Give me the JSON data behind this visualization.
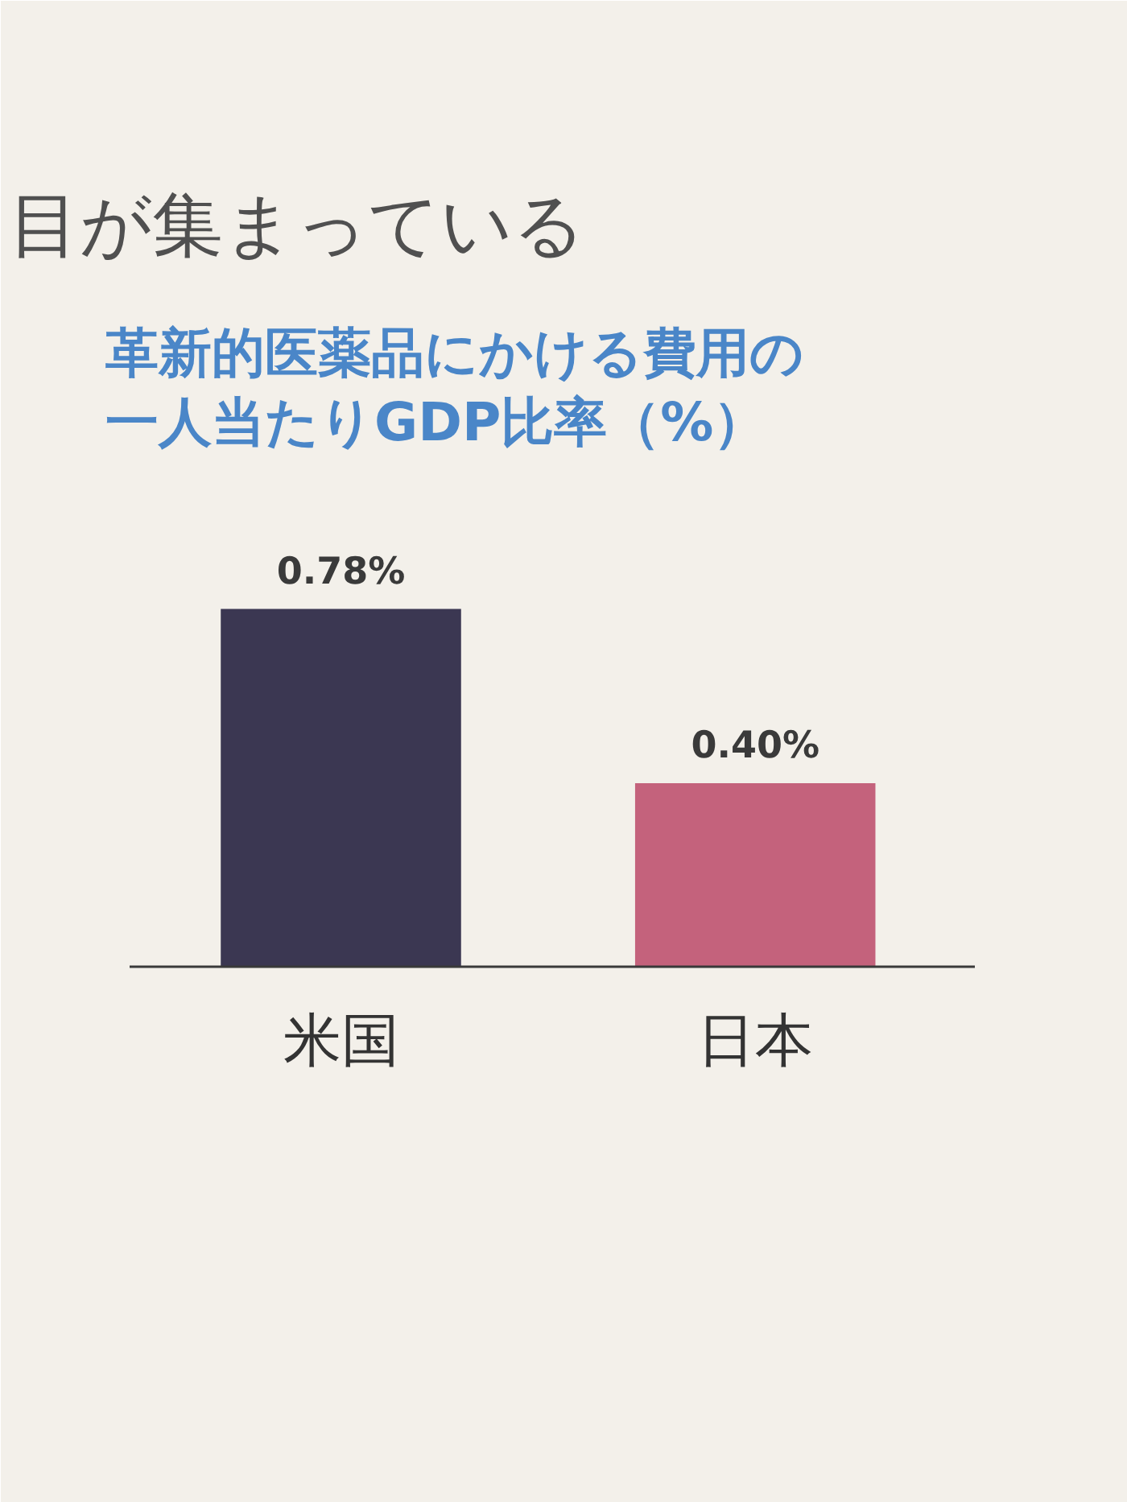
{
  "chart_data": {
    "type": "bar",
    "title": "革新的医薬品にかける費用の一人当たりGDP比率（%）",
    "annotations": [
      "目が集まっている"
    ],
    "categories": [
      "米国",
      "日本"
    ],
    "values": [
      0.78,
      0.4
    ],
    "colors": [
      "#3b3752",
      "#c4627c"
    ],
    "value_labels": [
      "0.78%",
      "0.40%"
    ],
    "grid": false,
    "tick_labels": "x"
  }
}
